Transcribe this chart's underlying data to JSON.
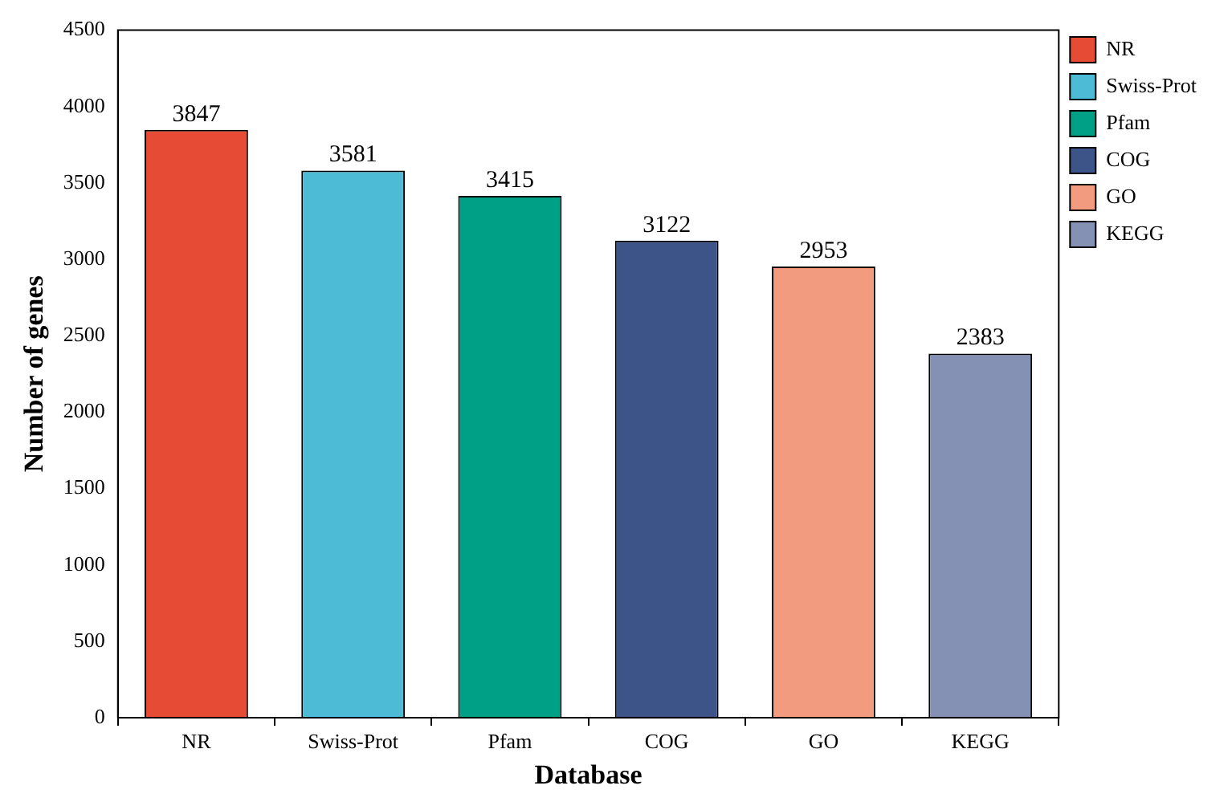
{
  "chart_data": {
    "type": "bar",
    "xlabel": "Database",
    "ylabel": "Number of genes",
    "categories": [
      "NR",
      "Swiss-Prot",
      "Pfam",
      "COG",
      "GO",
      "KEGG"
    ],
    "series": [
      {
        "name": "NR",
        "color": "#e64b35",
        "values": [
          3847,
          null,
          null,
          null,
          null,
          null
        ]
      },
      {
        "name": "Swiss-Prot",
        "color": "#4dbbd5",
        "values": [
          null,
          3581,
          null,
          null,
          null,
          null
        ]
      },
      {
        "name": "Pfam",
        "color": "#00a087",
        "values": [
          null,
          null,
          3415,
          null,
          null,
          null
        ]
      },
      {
        "name": "COG",
        "color": "#3c5488",
        "values": [
          null,
          null,
          null,
          3122,
          null,
          null
        ]
      },
      {
        "name": "GO",
        "color": "#f39b7f",
        "values": [
          null,
          null,
          null,
          null,
          2953,
          null
        ]
      },
      {
        "name": "KEGG",
        "color": "#8491b4",
        "values": [
          null,
          null,
          null,
          null,
          null,
          2383
        ]
      }
    ],
    "ylim": [
      0,
      4500
    ],
    "yticks": [
      0,
      500,
      1000,
      1500,
      2000,
      2500,
      3000,
      3500,
      4000,
      4500
    ],
    "data_labels": true,
    "grid": false,
    "legend": "top right"
  }
}
